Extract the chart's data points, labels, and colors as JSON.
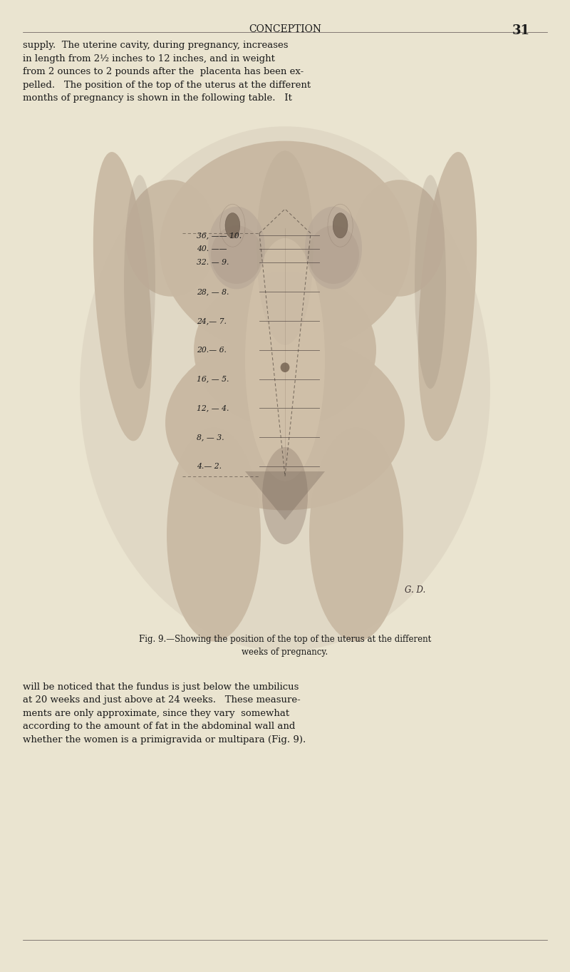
{
  "bg_color": "#EAE4D0",
  "page_width": 8.0,
  "page_height": 13.63,
  "dpi": 100,
  "header_title": "CONCEPTION",
  "header_page": "31",
  "top_text": "supply.  The uterine cavity, during pregnancy, increases\nin length from 2½ inches to 12 inches, and in weight\nfrom 2 ounces to 2 pounds after the  placenta has been ex-\npelled.   The position of the top of the uterus at the different\nmonths of pregnancy is shown in the following table.   It",
  "fig_caption": "Fig. 9.—Showing the position of the top of the uterus at the different\nweeks of pregnancy.",
  "bottom_text": "will be noticed that the fundus is just below the umbilicus\nat 20 weeks and just above at 24 weeks.   These measure-\nments are only approximate, since they vary  somewhat\naccording to the amount of fat in the abdominal wall and\nwhether the women is a primigravida or multipara (Fig. 9).",
  "weeks_labels": [
    [
      0.758,
      "36, —— 10."
    ],
    [
      0.744,
      "40. ——"
    ],
    [
      0.73,
      "32. — 9."
    ],
    [
      0.7,
      "28, — 8."
    ],
    [
      0.67,
      "24,— 7."
    ],
    [
      0.64,
      "20.— 6."
    ],
    [
      0.61,
      "16, — 5."
    ],
    [
      0.58,
      "12, — 4."
    ],
    [
      0.55,
      "8, — 3."
    ],
    [
      0.52,
      "4.— 2."
    ]
  ],
  "text_color": "#1a1a1a",
  "skin_color": "#c8b8a2",
  "shadow_color": "#9a8878",
  "dark_color": "#6a5a50"
}
